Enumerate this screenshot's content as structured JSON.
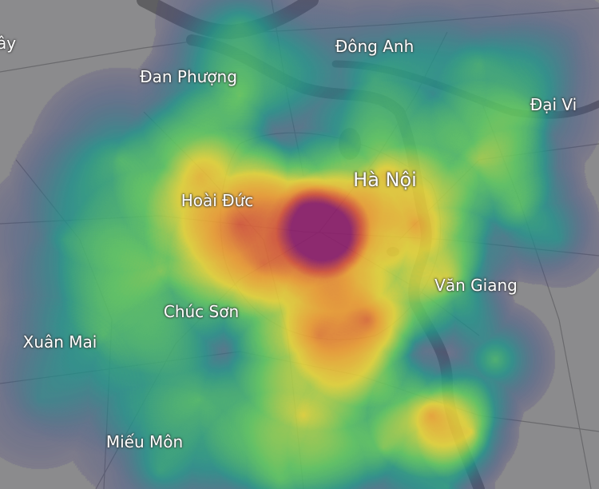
{
  "map": {
    "labels": {
      "tay": "ây",
      "dong_anh": "Đông Anh",
      "dan_phuong": "Đan Phượng",
      "dai_vi": "Đại Vi",
      "ha_noi": "Hà Nội",
      "hoai_duc": "Hoài Đức",
      "van_giang": "Văn Giang",
      "chuc_son": "Chúc Sơn",
      "xuan_mai": "Xuân Mai",
      "mieu_mon": "Miếu Môn"
    },
    "heat_palette": [
      "#4b2a7f",
      "#3b528b",
      "#21918c",
      "#5ec962",
      "#e8d93a",
      "#f2a134",
      "#d9543a",
      "#8e1d6b"
    ],
    "base_color": "#8b8b8d",
    "river_color": "#5f5f62"
  }
}
